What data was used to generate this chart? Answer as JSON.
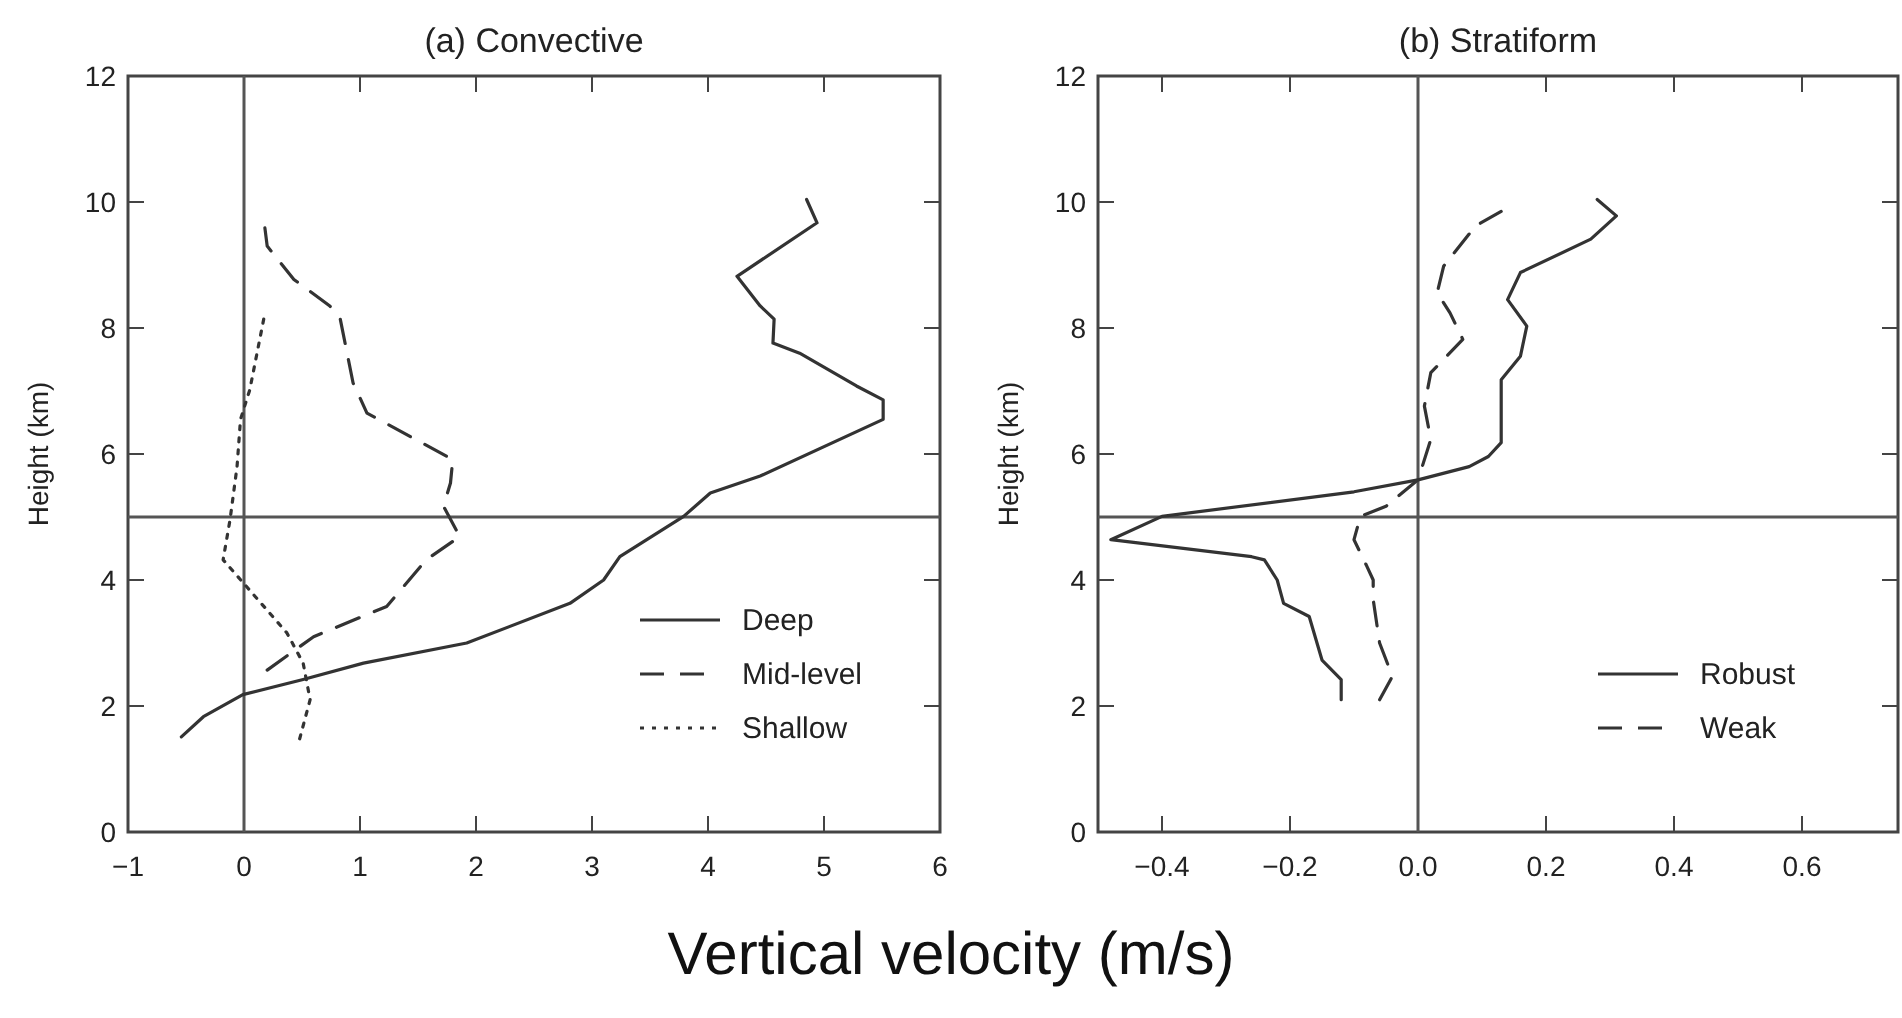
{
  "chart_data": [
    {
      "type": "line",
      "title": "(a) Convective",
      "ylabel": "Height (km)",
      "xlabel": "Vertical velocity (m/s)",
      "xlim": [
        -1,
        6
      ],
      "xticks": [
        {
          "value": -1,
          "label": "−1"
        },
        0,
        1,
        2,
        3,
        4,
        5,
        6
      ],
      "ylim": [
        0,
        12
      ],
      "yticks": [
        0,
        2,
        4,
        6,
        8,
        10,
        12
      ],
      "grid": false,
      "legend": "bottom right",
      "ref_lines": [
        {
          "axis": "x",
          "value": 0,
          "color": "#555555"
        },
        {
          "axis": "y",
          "value": 5,
          "color": "#555555"
        }
      ],
      "series": [
        {
          "name": "Deep",
          "color": "#333333",
          "line_style": "solid",
          "x": [
            -0.54,
            -0.35,
            -0.01,
            0.51,
            1.03,
            1.92,
            2.81,
            3.1,
            3.24,
            3.79,
            4.02,
            4.45,
            5.51,
            5.51,
            5.28,
            4.79,
            4.56,
            4.57,
            4.45,
            4.25,
            4.94,
            4.85
          ],
          "values": [
            1.51,
            1.83,
            2.18,
            2.42,
            2.68,
            3.0,
            3.63,
            4.0,
            4.37,
            5.01,
            5.38,
            5.65,
            6.55,
            6.86,
            7.08,
            7.6,
            7.76,
            8.14,
            8.35,
            8.82,
            9.67,
            10.04
          ]
        },
        {
          "name": "Mid-level",
          "color": "#333333",
          "line_style": "dashed",
          "x": [
            0.2,
            0.6,
            1.23,
            1.57,
            1.86,
            1.72,
            1.78,
            1.8,
            1.06,
            0.94,
            0.83,
            0.74,
            0.43,
            0.2,
            0.18
          ],
          "values": [
            2.57,
            3.1,
            3.58,
            4.32,
            4.69,
            5.17,
            5.54,
            5.91,
            6.65,
            7.13,
            8.14,
            8.35,
            8.77,
            9.3,
            9.59
          ]
        },
        {
          "name": "Shallow",
          "color": "#333333",
          "line_style": "dotted",
          "x": [
            0.48,
            0.57,
            0.51,
            0.37,
            0.02,
            -0.18,
            -0.12,
            -0.06,
            -0.03,
            0.05,
            0.17
          ],
          "values": [
            1.48,
            2.1,
            2.68,
            3.16,
            3.9,
            4.32,
            4.96,
            5.8,
            6.55,
            7.02,
            8.14
          ]
        }
      ]
    },
    {
      "type": "line",
      "title": "(b) Stratiform",
      "ylabel": "Height (km)",
      "xlim": [
        -0.5,
        0.75
      ],
      "xticks": [
        {
          "value": -0.4,
          "label": "−0.4"
        },
        {
          "value": -0.2,
          "label": "−0.2"
        },
        {
          "value": 0,
          "label": "0.0"
        },
        {
          "value": 0.2,
          "label": "0.2"
        },
        {
          "value": 0.4,
          "label": "0.4"
        },
        {
          "value": 0.6,
          "label": "0.6"
        }
      ],
      "ylim": [
        0,
        12
      ],
      "yticks": [
        0,
        2,
        4,
        6,
        8,
        10,
        12
      ],
      "grid": false,
      "legend": "bottom right",
      "ref_lines": [
        {
          "axis": "x",
          "value": 0,
          "color": "#555555"
        },
        {
          "axis": "y",
          "value": 5,
          "color": "#555555"
        }
      ],
      "series": [
        {
          "name": "Robust",
          "color": "#333333",
          "line_style": "solid",
          "x": [
            -0.12,
            -0.12,
            -0.15,
            -0.17,
            -0.21,
            -0.22,
            -0.24,
            -0.26,
            -0.48,
            -0.4,
            -0.1,
            0.0,
            0.08,
            0.11,
            0.13,
            0.13,
            0.16,
            0.17,
            0.14,
            0.16,
            0.27,
            0.31,
            0.28
          ],
          "values": [
            2.1,
            2.42,
            2.73,
            3.42,
            3.63,
            4.0,
            4.32,
            4.37,
            4.64,
            5.01,
            5.4,
            5.59,
            5.8,
            5.96,
            6.18,
            7.18,
            7.55,
            8.03,
            8.45,
            8.88,
            9.41,
            9.78,
            10.04
          ]
        },
        {
          "name": "Weak",
          "color": "#333333",
          "line_style": "dashed",
          "x": [
            -0.06,
            -0.04,
            -0.06,
            -0.07,
            -0.07,
            -0.08,
            -0.1,
            -0.09,
            -0.05,
            0.0,
            0.02,
            0.01,
            0.02,
            0.07,
            0.05,
            0.03,
            0.04,
            0.09,
            0.13
          ],
          "values": [
            2.1,
            2.47,
            3.0,
            3.69,
            4.0,
            4.22,
            4.64,
            5.01,
            5.17,
            5.59,
            6.23,
            6.76,
            7.29,
            7.82,
            8.24,
            8.56,
            8.98,
            9.62,
            9.85
          ]
        }
      ]
    }
  ]
}
